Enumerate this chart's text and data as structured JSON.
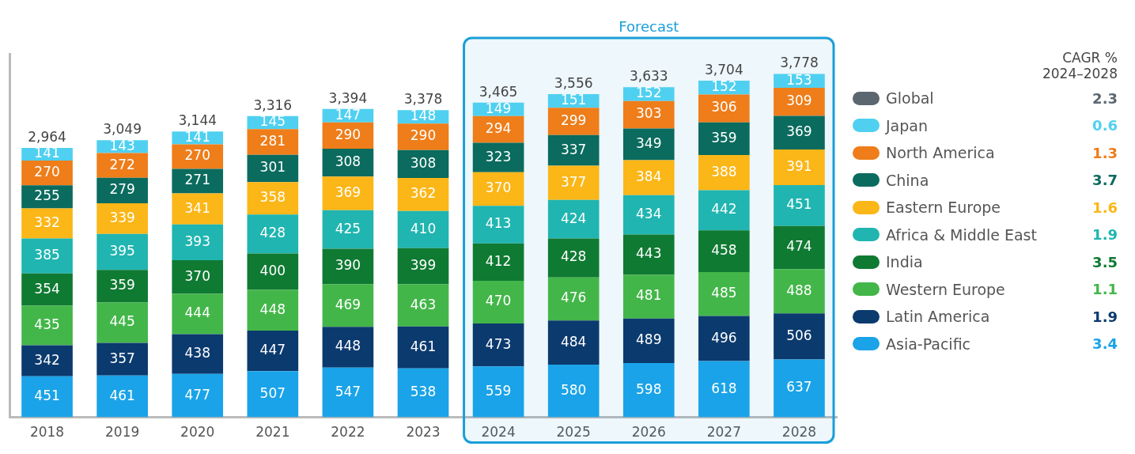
{
  "chart_data": {
    "type": "bar",
    "stacked": true,
    "data_labels": true,
    "tick_labels": "x",
    "grid": false,
    "legend": "right",
    "legend_title": "CAGR %\n2024–2028",
    "categories": [
      "2018",
      "2019",
      "2020",
      "2021",
      "2022",
      "2023",
      "2024",
      "2025",
      "2026",
      "2027",
      "2028"
    ],
    "series": [
      {
        "name": "Asia-Pacific",
        "color": "#1aa3e8",
        "values": [
          451,
          461,
          477,
          507,
          547,
          538,
          559,
          580,
          598,
          618,
          637
        ]
      },
      {
        "name": "Latin America",
        "color": "#0b3a6e",
        "values": [
          342,
          357,
          438,
          447,
          448,
          461,
          473,
          484,
          489,
          496,
          506
        ]
      },
      {
        "name": "Western Europe",
        "color": "#43b649",
        "values": [
          435,
          445,
          444,
          448,
          469,
          463,
          470,
          476,
          481,
          485,
          488
        ]
      },
      {
        "name": "India",
        "color": "#0f7a32",
        "values": [
          354,
          359,
          370,
          400,
          390,
          399,
          412,
          428,
          443,
          458,
          474
        ]
      },
      {
        "name": "Africa & Middle East",
        "color": "#20b5b0",
        "values": [
          385,
          395,
          393,
          428,
          425,
          410,
          413,
          424,
          434,
          442,
          451
        ]
      },
      {
        "name": "Eastern Europe",
        "color": "#fbb617",
        "values": [
          332,
          339,
          341,
          358,
          369,
          362,
          370,
          377,
          384,
          388,
          391
        ]
      },
      {
        "name": "China",
        "color": "#0a6b5e",
        "values": [
          255,
          279,
          271,
          301,
          308,
          308,
          323,
          337,
          349,
          359,
          369
        ]
      },
      {
        "name": "North America",
        "color": "#ee7d1a",
        "values": [
          270,
          272,
          270,
          281,
          290,
          290,
          294,
          299,
          303,
          306,
          309
        ]
      },
      {
        "name": "Japan",
        "color": "#4fd0f0",
        "values": [
          141,
          143,
          141,
          145,
          147,
          148,
          149,
          151,
          152,
          152,
          153
        ]
      },
      {
        "name": "Global",
        "color": "#5b6770",
        "values": [
          null,
          null,
          null,
          null,
          null,
          null,
          null,
          null,
          null,
          null,
          null
        ]
      }
    ],
    "totals": [
      "2,964",
      "3,049",
      "3,144",
      "3,316",
      "3,394",
      "3,378",
      "3,465",
      "3,556",
      "3,633",
      "3,704",
      "3,778"
    ],
    "bands": [
      {
        "axis": "x",
        "from": "2024",
        "to": "2028",
        "label": "Forecast",
        "color": "#1a9fd8"
      }
    ],
    "annotations": [
      "3.4",
      "1.9",
      "1.1",
      "3.5",
      "1.9",
      "1.6",
      "3.7",
      "1.3",
      "0.6",
      "2.3"
    ]
  }
}
